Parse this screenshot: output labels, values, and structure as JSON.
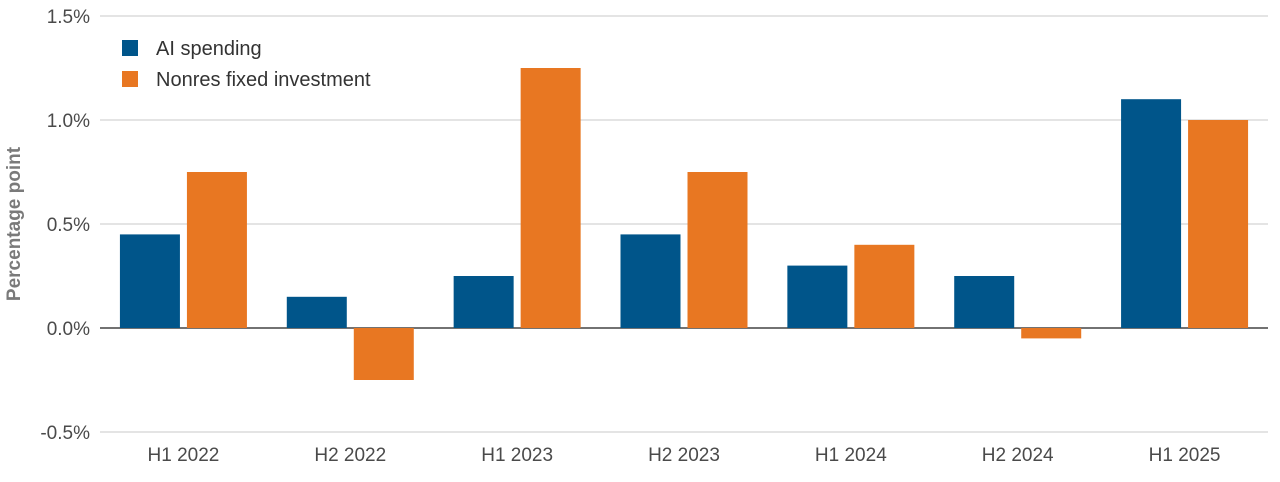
{
  "chart_data": {
    "type": "bar",
    "title": "",
    "xlabel": "",
    "ylabel": "Percentage point",
    "ylim": [
      -0.5,
      1.5
    ],
    "yticks": [
      -0.5,
      0.0,
      0.5,
      1.0,
      1.5
    ],
    "ytick_labels": [
      "-0.5%",
      "0.0%",
      "0.5%",
      "1.0%",
      "1.5%"
    ],
    "grid": true,
    "legend_position": "top-left",
    "categories": [
      "H1 2022",
      "H2 2022",
      "H1 2023",
      "H2 2023",
      "H1 2024",
      "H2 2024",
      "H1 2025"
    ],
    "series": [
      {
        "name": "AI spending",
        "color": "#00558A",
        "values": [
          0.45,
          0.15,
          0.25,
          0.45,
          0.3,
          0.25,
          1.1
        ]
      },
      {
        "name": "Nonres fixed investment",
        "color": "#E87722",
        "values": [
          0.75,
          -0.25,
          1.25,
          0.75,
          0.4,
          -0.05,
          1.0
        ]
      }
    ]
  }
}
